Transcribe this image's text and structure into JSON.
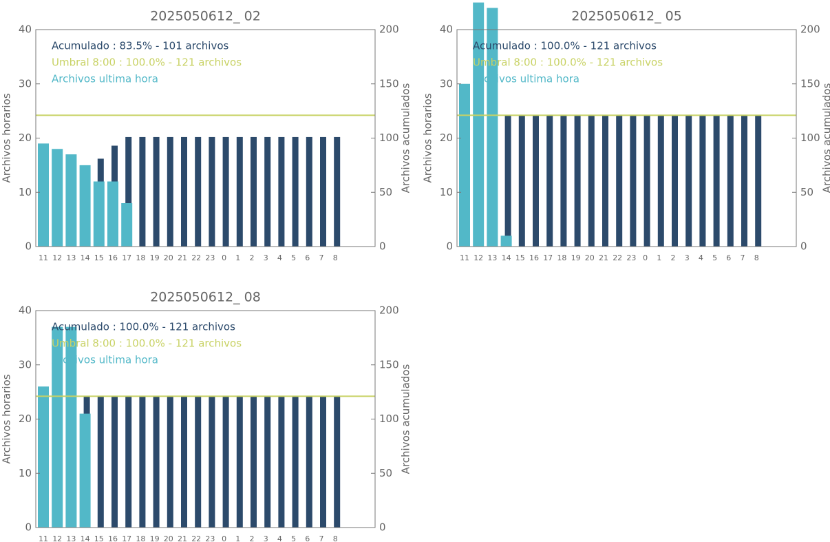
{
  "chart_data": [
    {
      "type": "bar",
      "title": "2025050612_ 02",
      "ylabel": "Archivos horarios",
      "y2label": "Archivos acumulados",
      "categories": [
        "11",
        "12",
        "13",
        "14",
        "15",
        "16",
        "17",
        "18",
        "19",
        "20",
        "21",
        "22",
        "23",
        "0",
        "1",
        "2",
        "3",
        "4",
        "5",
        "6",
        "7",
        "8"
      ],
      "ylim": [
        0,
        40
      ],
      "yticks": [
        0,
        10,
        20,
        30,
        40
      ],
      "y2lim": [
        0,
        200
      ],
      "y2ticks": [
        0,
        50,
        100,
        150,
        200
      ],
      "series": [
        {
          "name": "Acumulado : 83.5% - 101 archivos",
          "color": "#2c4a6b",
          "axis": "y2",
          "values": [
            19,
            37,
            54,
            69,
            81,
            93,
            101,
            101,
            101,
            101,
            101,
            101,
            101,
            101,
            101,
            101,
            101,
            101,
            101,
            101,
            101,
            101
          ]
        },
        {
          "name": "Archivos ultima hora",
          "color": "#52b8c8",
          "values": [
            19,
            18,
            17,
            15,
            12,
            12,
            8,
            null,
            null,
            null,
            null,
            null,
            null,
            null,
            null,
            null,
            null,
            null,
            null,
            null,
            null,
            null
          ]
        }
      ],
      "threshold": {
        "name": "Umbral 8:00 : 100.0% - 121 archivos",
        "value": 121,
        "axis": "y2",
        "color": "#c8d264"
      }
    },
    {
      "type": "bar",
      "title": "2025050612_ 05",
      "ylabel": "Archivos horarios",
      "y2label": "Archivos acumulados",
      "categories": [
        "11",
        "12",
        "13",
        "14",
        "15",
        "16",
        "17",
        "18",
        "19",
        "20",
        "21",
        "22",
        "23",
        "0",
        "1",
        "2",
        "3",
        "4",
        "5",
        "6",
        "7",
        "8"
      ],
      "ylim": [
        0,
        40
      ],
      "yticks": [
        0,
        10,
        20,
        30,
        40
      ],
      "y2lim": [
        0,
        200
      ],
      "y2ticks": [
        0,
        50,
        100,
        150,
        200
      ],
      "series": [
        {
          "name": "Acumulado : 100.0% - 121 archivos",
          "color": "#2c4a6b",
          "axis": "y2",
          "values": [
            30,
            75,
            119,
            121,
            121,
            121,
            121,
            121,
            121,
            121,
            121,
            121,
            121,
            121,
            121,
            121,
            121,
            121,
            121,
            121,
            121,
            121
          ]
        },
        {
          "name": "Archivos ultima hora",
          "color": "#52b8c8",
          "values": [
            30,
            45,
            44,
            2,
            null,
            null,
            null,
            null,
            null,
            null,
            null,
            null,
            null,
            null,
            null,
            null,
            null,
            null,
            null,
            null,
            null,
            null
          ]
        }
      ],
      "threshold": {
        "name": "Umbral 8:00 : 100.0% - 121 archivos",
        "value": 121,
        "axis": "y2",
        "color": "#c8d264"
      }
    },
    {
      "type": "bar",
      "title": "2025050612_ 08",
      "ylabel": "Archivos horarios",
      "y2label": "Archivos acumulados",
      "categories": [
        "11",
        "12",
        "13",
        "14",
        "15",
        "16",
        "17",
        "18",
        "19",
        "20",
        "21",
        "22",
        "23",
        "0",
        "1",
        "2",
        "3",
        "4",
        "5",
        "6",
        "7",
        "8"
      ],
      "ylim": [
        0,
        40
      ],
      "yticks": [
        0,
        10,
        20,
        30,
        40
      ],
      "y2lim": [
        0,
        200
      ],
      "y2ticks": [
        0,
        50,
        100,
        150,
        200
      ],
      "series": [
        {
          "name": "Acumulado : 100.0% - 121 archivos",
          "color": "#2c4a6b",
          "axis": "y2",
          "values": [
            26,
            63,
            100,
            121,
            121,
            121,
            121,
            121,
            121,
            121,
            121,
            121,
            121,
            121,
            121,
            121,
            121,
            121,
            121,
            121,
            121,
            121
          ]
        },
        {
          "name": "Archivos ultima hora",
          "color": "#52b8c8",
          "values": [
            26,
            37,
            37,
            21,
            null,
            null,
            null,
            null,
            null,
            null,
            null,
            null,
            null,
            null,
            null,
            null,
            null,
            null,
            null,
            null,
            null,
            null
          ]
        }
      ],
      "threshold": {
        "name": "Umbral 8:00 : 100.0% - 121 archivos",
        "value": 121,
        "axis": "y2",
        "color": "#c8d264"
      }
    }
  ]
}
